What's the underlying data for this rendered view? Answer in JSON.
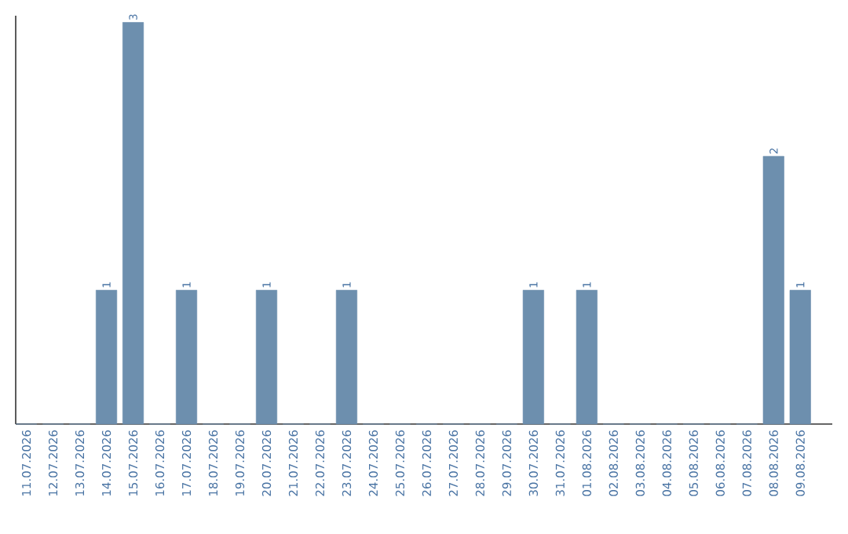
{
  "chart_data": {
    "type": "bar",
    "categories": [
      "11.07.2026",
      "12.07.2026",
      "13.07.2026",
      "14.07.2026",
      "15.07.2026",
      "16.07.2026",
      "17.07.2026",
      "18.07.2026",
      "19.07.2026",
      "20.07.2026",
      "21.07.2026",
      "22.07.2026",
      "23.07.2026",
      "24.07.2026",
      "25.07.2026",
      "26.07.2026",
      "27.07.2026",
      "28.07.2026",
      "29.07.2026",
      "30.07.2026",
      "31.07.2026",
      "01.08.2026",
      "02.08.2026",
      "03.08.2026",
      "04.08.2026",
      "05.08.2026",
      "06.08.2026",
      "07.08.2026",
      "08.08.2026",
      "09.08.2026"
    ],
    "values": [
      0,
      0,
      0,
      1,
      3,
      0,
      1,
      0,
      0,
      1,
      0,
      0,
      1,
      0,
      0,
      0,
      0,
      0,
      0,
      1,
      0,
      1,
      0,
      0,
      0,
      0,
      0,
      0,
      2,
      1
    ],
    "value_labels": [
      null,
      null,
      null,
      "1",
      "3",
      null,
      "1",
      null,
      null,
      "1",
      null,
      null,
      "1",
      null,
      null,
      null,
      null,
      null,
      null,
      "1",
      null,
      "1",
      null,
      null,
      null,
      null,
      null,
      null,
      "2",
      "1"
    ],
    "color": "#6d8fae",
    "ylim": [
      0,
      3.05
    ],
    "tick_labels": "x"
  }
}
